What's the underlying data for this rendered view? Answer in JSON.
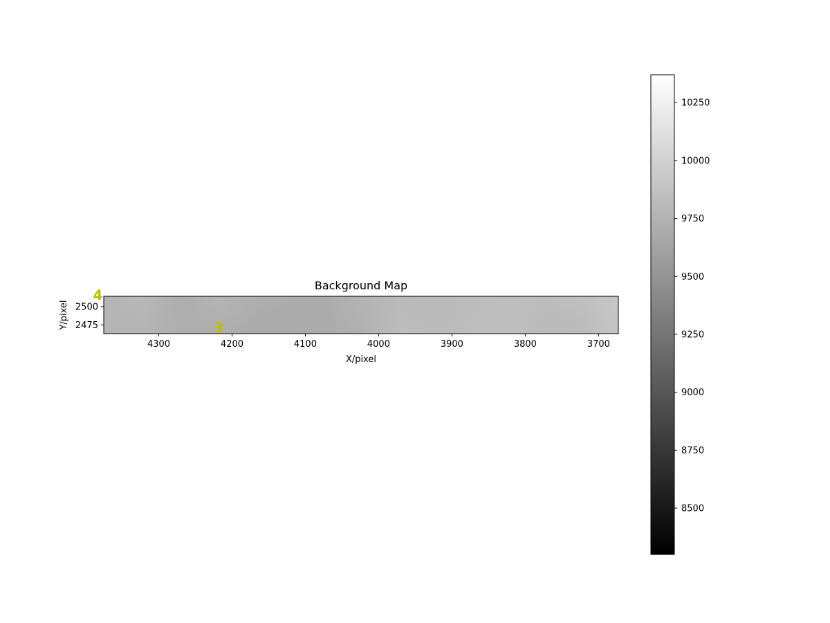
{
  "chart_data": {
    "type": "heatmap",
    "title": "Background Map",
    "xlabel": "X/pixel",
    "ylabel": "Y/pixel",
    "xlim": [
      4375,
      3673
    ],
    "ylim": [
      2463,
      2514
    ],
    "x_inverted": true,
    "x_ticks": [
      4300,
      4200,
      4100,
      4000,
      3900,
      3800,
      3700
    ],
    "y_ticks": [
      2475,
      2500
    ],
    "colormap": "gray",
    "colorbar": {
      "vmin": 8300,
      "vmax": 10370,
      "ticks": [
        8500,
        8750,
        9000,
        9250,
        9500,
        9750,
        10000,
        10250
      ]
    },
    "x_samples": [
      4370,
      4320,
      4270,
      4220,
      4170,
      4120,
      4070,
      4020,
      3970,
      3920,
      3870,
      3820,
      3770,
      3720,
      3680
    ],
    "values_top": [
      9760,
      9790,
      9700,
      9760,
      9720,
      9700,
      9700,
      9760,
      9800,
      9790,
      9830,
      9840,
      9830,
      9860,
      9900
    ],
    "values_bottom": [
      9770,
      9760,
      9720,
      9710,
      9690,
      9690,
      9700,
      9740,
      9840,
      9830,
      9840,
      9850,
      9810,
      9820,
      9900
    ],
    "annotations": [
      {
        "label": "4",
        "x": 4383,
        "y": 2509,
        "color": "#bfbf00"
      },
      {
        "label": "3",
        "x": 4218,
        "y": 2465,
        "color": "#bfbf00"
      }
    ],
    "overlay_arc": {
      "color": "#cc3333",
      "center_x": 4435,
      "center_y": 2410,
      "radius": 63
    }
  }
}
